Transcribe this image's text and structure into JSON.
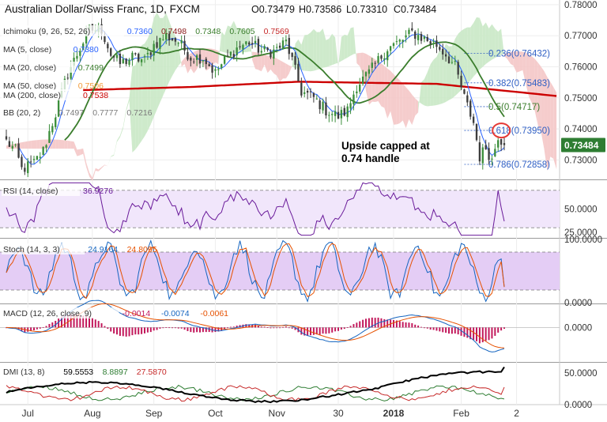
{
  "header": {
    "symbol": "Australian Dollar/Swiss Franc, 1D, FXCM",
    "ohlc": [
      {
        "k": "O",
        "v": "0.73479"
      },
      {
        "k": "H",
        "v": "0.73586"
      },
      {
        "k": "L",
        "v": "0.73310"
      },
      {
        "k": "C",
        "v": "0.73484"
      }
    ]
  },
  "legend": [
    {
      "label": "Ichimoku (9, 26, 52, 26)",
      "values": [
        {
          "v": "0.7360",
          "color": "#2962ff"
        },
        {
          "v": "0.7498",
          "color": "#8b1a1a"
        },
        {
          "v": "0.7348",
          "color": "#3a7d2c"
        },
        {
          "v": "0.7605",
          "color": "#3a7d2c"
        },
        {
          "v": "0.7569",
          "color": "#c62828"
        }
      ]
    },
    {
      "label": "MA (5, close)",
      "values": [
        {
          "v": "0.7380",
          "color": "#2962ff"
        }
      ]
    },
    {
      "label": "MA (20, close)",
      "values": [
        {
          "v": "0.7499",
          "color": "#3a7d2c"
        }
      ]
    },
    {
      "label": "MA (50, close)",
      "values": [
        {
          "v": "0.7506",
          "color": "#f29a38"
        }
      ]
    },
    {
      "label": "MA (200, close)",
      "values": [
        {
          "v": "0.7538",
          "color": "#cc0000"
        }
      ]
    },
    {
      "label": "BB (20, 2)",
      "values": [
        {
          "v": "0.7497",
          "color": "#7a7a7a"
        },
        {
          "v": "0.7777",
          "color": "#7a7a7a"
        },
        {
          "v": "0.7216",
          "color": "#7a7a7a"
        }
      ]
    }
  ],
  "annotation": {
    "line1": "Upside capped at",
    "line2": "0.74 handle"
  },
  "last_price": "0.73484",
  "panels": {
    "rsi": {
      "label": "RSI (14, close)",
      "values": [
        {
          "v": "36.9276",
          "color": "#6a1b9a"
        }
      ]
    },
    "stoch": {
      "label": "Stoch (14, 3, 3)",
      "values": [
        {
          "v": "24.9164",
          "color": "#1565c0"
        },
        {
          "v": "24.8095",
          "color": "#e65100"
        }
      ]
    },
    "macd": {
      "label": "MACD (12, 26, close, 9)",
      "values": [
        {
          "v": "-0.0014",
          "color": "#c2185b"
        },
        {
          "v": "-0.0074",
          "color": "#1565c0"
        },
        {
          "v": "-0.0061",
          "color": "#e65100"
        }
      ]
    },
    "dmi": {
      "label": "DMI (13, 8)",
      "values": [
        {
          "v": "59.5553",
          "color": "#000000"
        },
        {
          "v": "8.8897",
          "color": "#2e7d32"
        },
        {
          "v": "27.5870",
          "color": "#c62828"
        }
      ]
    }
  },
  "colors": {
    "up": "#3b8e3b",
    "down": "#3d3d3d",
    "cloud_bear": "#f4c7c7",
    "cloud_bull": "#c9e8c5",
    "ma20": "#3a7d2c",
    "ma200": "#cc0000",
    "ma5": "#2962ff",
    "fib": "#2f5fc4",
    "fib_half": "#3a7d2c",
    "panel_fill": "#f1e6fb",
    "stoch_fill": "#e4cdf5",
    "circle": "#e53935",
    "price_badge": "#2e7d32"
  },
  "chart_data": [
    {
      "type": "candlestick",
      "title": "Australian Dollar/Swiss Franc, 1D, FXCM",
      "ylim": [
        0.724,
        0.7815
      ],
      "y_ticks": [
        "0.78000",
        "0.77000",
        "0.76000",
        "0.75000",
        "0.74000",
        "0.73000"
      ],
      "y_tick_values": [
        0.78,
        0.77,
        0.76,
        0.75,
        0.74,
        0.73
      ],
      "x_ticks": [
        "Jul",
        "Aug",
        "Sep",
        "Oct",
        "Nov",
        "30",
        "2018",
        "Feb",
        "2"
      ],
      "x_tick_index": [
        7,
        28,
        48,
        68,
        88,
        108,
        126,
        148,
        166
      ],
      "num_days": 180,
      "anchors": [
        [
          0,
          0.736
        ],
        [
          3,
          0.733
        ],
        [
          5,
          0.727
        ],
        [
          9,
          0.729
        ],
        [
          12,
          0.733
        ],
        [
          16,
          0.745
        ],
        [
          20,
          0.758
        ],
        [
          24,
          0.766
        ],
        [
          27,
          0.772
        ],
        [
          31,
          0.772
        ],
        [
          34,
          0.764
        ],
        [
          37,
          0.761
        ],
        [
          41,
          0.763
        ],
        [
          45,
          0.762
        ],
        [
          48,
          0.767
        ],
        [
          52,
          0.77
        ],
        [
          56,
          0.768
        ],
        [
          60,
          0.763
        ],
        [
          64,
          0.763
        ],
        [
          68,
          0.758
        ],
        [
          71,
          0.762
        ],
        [
          75,
          0.766
        ],
        [
          79,
          0.768
        ],
        [
          83,
          0.765
        ],
        [
          87,
          0.765
        ],
        [
          91,
          0.768
        ],
        [
          93,
          0.762
        ],
        [
          96,
          0.752
        ],
        [
          100,
          0.75
        ],
        [
          104,
          0.746
        ],
        [
          108,
          0.744
        ],
        [
          111,
          0.746
        ],
        [
          114,
          0.754
        ],
        [
          118,
          0.758
        ],
        [
          121,
          0.762
        ],
        [
          124,
          0.766
        ],
        [
          128,
          0.768
        ],
        [
          132,
          0.771
        ],
        [
          136,
          0.769
        ],
        [
          140,
          0.767
        ],
        [
          143,
          0.764
        ],
        [
          146,
          0.76
        ],
        [
          149,
          0.75
        ],
        [
          152,
          0.742
        ],
        [
          154,
          0.731
        ],
        [
          156,
          0.734
        ],
        [
          158,
          0.73
        ],
        [
          160,
          0.738
        ],
        [
          162,
          0.7348
        ]
      ],
      "fibonacci": [
        {
          "label": "0.236(0.76432)",
          "value": 0.76432
        },
        {
          "label": "0.382(0.75483)",
          "value": 0.75483
        },
        {
          "label": "0.5(0.74717)",
          "value": 0.74717
        },
        {
          "label": "0.618(0.73950)",
          "value": 0.7395
        },
        {
          "label": "0.786(0.72858)",
          "value": 0.72858
        }
      ],
      "fib_range_start_index": 149,
      "ma200_anchors": [
        [
          25,
          0.7525
        ],
        [
          60,
          0.7535
        ],
        [
          95,
          0.7552
        ],
        [
          140,
          0.7545
        ],
        [
          180,
          0.7505
        ]
      ],
      "circle_at": {
        "index": 160,
        "value": 0.7395
      }
    },
    {
      "type": "line",
      "name": "RSI (14, close)",
      "ylim": [
        20,
        80
      ],
      "ref_lines": [
        30,
        70
      ],
      "y_ticks": [
        "50.0000",
        "25.0000"
      ],
      "y_tick_values": [
        50,
        25
      ],
      "last": 36.9276
    },
    {
      "type": "line",
      "name": "Stoch (14, 3, 3)",
      "ylim": [
        0,
        100
      ],
      "ref_lines": [
        20,
        80
      ],
      "y_ticks": [
        "100.0000",
        "0.0000"
      ],
      "y_tick_values": [
        100,
        0
      ],
      "last_k": 24.9164,
      "last_d": 24.8095
    },
    {
      "type": "line",
      "name": "MACD (12, 26, close, 9)",
      "ylim": [
        -0.012,
        0.008
      ],
      "y_ticks": [
        "0.0000"
      ],
      "y_tick_values": [
        0
      ],
      "last_macd": -0.0074,
      "last_signal": -0.0061,
      "last_hist": -0.0014
    },
    {
      "type": "line",
      "name": "DMI (13, 8)",
      "ylim": [
        0,
        65
      ],
      "y_ticks": [
        "50.0000",
        "0.0000"
      ],
      "y_tick_values": [
        50,
        0
      ],
      "last_adx": 59.5553,
      "last_plus_di": 8.8897,
      "last_minus_di": 27.587
    }
  ]
}
